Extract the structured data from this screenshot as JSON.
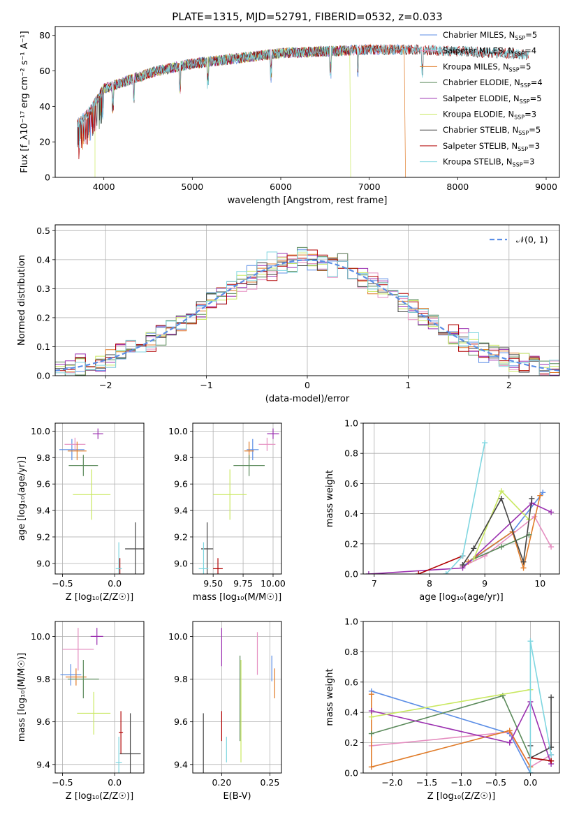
{
  "figure_title": "PLATE=1315, MJD=52791, FIBERID=0532, z=0.033",
  "colors": {
    "chabrier_miles": "#5b8ee6",
    "salpeter_miles": "#e58ec0",
    "kroupa_miles": "#e07b28",
    "chabrier_elodie": "#5a8a5a",
    "salpeter_elodie": "#9b30b0",
    "kroupa_elodie": "#c9e860",
    "chabrier_stelib": "#444444",
    "salpeter_stelib": "#b00000",
    "kroupa_stelib": "#7fd6e0",
    "normal_curve": "#5b8ee6",
    "grid": "#b0b0b0"
  },
  "chart_data": [
    {
      "id": "spectrum",
      "type": "line",
      "xlabel": "wavelength [Angstrom, rest frame]",
      "ylabel": "Flux [f_λ10⁻¹⁷ erg cm⁻² s⁻¹ A⁻¹]",
      "xlim": [
        3450,
        9150
      ],
      "ylim": [
        0,
        85
      ],
      "xticks": [
        4000,
        5000,
        6000,
        7000,
        8000,
        9000
      ],
      "yticks": [
        0,
        20,
        40,
        60,
        80
      ],
      "grid": false,
      "legend_loc": "upper right",
      "spectrum_trend": {
        "x": [
          3700,
          3850,
          4000,
          4300,
          4600,
          5000,
          5500,
          6000,
          6500,
          7000,
          7500,
          8000,
          8500,
          8800
        ],
        "y": [
          30,
          38,
          50,
          55,
          60,
          64,
          67,
          70,
          71,
          72,
          72,
          71,
          70,
          69
        ]
      },
      "series": [
        {
          "name": "Chabrier MILES, N_SSP=5",
          "label_main": "Chabrier MILES, N",
          "label_sub": "SSP",
          "label_tail": "=5",
          "color_key": "chabrier_miles",
          "x_range": [
            3700,
            7400
          ]
        },
        {
          "name": "Salpeter MILES, N_SSP=4",
          "label_main": "Salpeter MILES, N",
          "label_sub": "SSP",
          "label_tail": "=4",
          "color_key": "salpeter_miles",
          "x_range": [
            3700,
            7400
          ]
        },
        {
          "name": "Kroupa MILES, N_SSP=5",
          "label_main": "Kroupa MILES, N",
          "label_sub": "SSP",
          "label_tail": "=5",
          "color_key": "kroupa_miles",
          "x_range": [
            3700,
            7400
          ],
          "drop_at": 7410
        },
        {
          "name": "Chabrier ELODIE, N_SSP=4",
          "label_main": "Chabrier ELODIE, N",
          "label_sub": "SSP",
          "label_tail": "=4",
          "color_key": "chabrier_elodie",
          "x_range": [
            3900,
            6780
          ]
        },
        {
          "name": "Salpeter ELODIE, N_SSP=5",
          "label_main": "Salpeter ELODIE, N",
          "label_sub": "SSP",
          "label_tail": "=5",
          "color_key": "salpeter_elodie",
          "x_range": [
            3900,
            6780
          ]
        },
        {
          "name": "Kroupa ELODIE, N_SSP=3",
          "label_main": "Kroupa ELODIE, N",
          "label_sub": "SSP",
          "label_tail": "=3",
          "color_key": "kroupa_elodie",
          "x_range": [
            3900,
            6780
          ],
          "drop_at": 3900,
          "drop_at2": 6790
        },
        {
          "name": "Chabrier STELIB, N_SSP=5",
          "label_main": "Chabrier STELIB, N",
          "label_sub": "SSP",
          "label_tail": "=5",
          "color_key": "chabrier_stelib",
          "x_range": [
            3700,
            8800
          ]
        },
        {
          "name": "Salpeter STELIB, N_SSP=3",
          "label_main": "Salpeter STELIB, N",
          "label_sub": "SSP",
          "label_tail": "=3",
          "color_key": "salpeter_stelib",
          "x_range": [
            3700,
            8800
          ]
        },
        {
          "name": "Kroupa STELIB, N_SSP=3",
          "label_main": "Kroupa STELIB, N",
          "label_sub": "SSP",
          "label_tail": "=3",
          "color_key": "kroupa_stelib",
          "x_range": [
            3700,
            8800
          ]
        }
      ]
    },
    {
      "id": "residuals",
      "type": "line",
      "xlabel": "(data-model)/error",
      "ylabel": "Normed distribution",
      "xlim": [
        -2.5,
        2.5
      ],
      "ylim": [
        0,
        0.52
      ],
      "xticks": [
        -2,
        -1,
        0,
        1,
        2
      ],
      "xtick_labels": [
        "−2",
        "−1",
        "0",
        "1",
        "2"
      ],
      "yticks": [
        0,
        0.1,
        0.2,
        0.3,
        0.4,
        0.5
      ],
      "ytick_labels": [
        "0.0",
        "0.1",
        "0.2",
        "0.3",
        "0.4",
        "0.5"
      ],
      "grid": true,
      "legend_loc": "upper right",
      "normal_label": "𝒩(0, 1)",
      "bin_width": 0.1,
      "series_color_keys": [
        "chabrier_miles",
        "salpeter_miles",
        "kroupa_miles",
        "chabrier_elodie",
        "salpeter_elodie",
        "kroupa_elodie",
        "chabrier_stelib",
        "salpeter_stelib",
        "kroupa_stelib"
      ]
    },
    {
      "id": "age_vs_metallicity",
      "type": "errorbar",
      "xlabel": "Z [log₁₀(Z/Z☉)]",
      "ylabel": "age  [log₁₀(age/yr)]",
      "xlim": [
        -0.57,
        0.28
      ],
      "ylim": [
        8.92,
        10.06
      ],
      "xticks": [
        -0.5,
        0.0
      ],
      "xtick_labels": [
        "−0.5",
        "0.0"
      ],
      "yticks": [
        9.0,
        9.2,
        9.4,
        9.6,
        9.8,
        10.0
      ],
      "ytick_labels": [
        "9.0",
        "9.2",
        "9.4",
        "9.6",
        "9.8",
        "10.0"
      ],
      "grid": true,
      "points": [
        {
          "color_key": "chabrier_miles",
          "x": -0.41,
          "xerr": 0.12,
          "y": 9.86,
          "yerr": 0.08
        },
        {
          "color_key": "salpeter_miles",
          "x": -0.38,
          "xerr": 0.1,
          "y": 9.9,
          "yerr": 0.05
        },
        {
          "color_key": "kroupa_miles",
          "x": -0.36,
          "xerr": 0.09,
          "y": 9.85,
          "yerr": 0.07
        },
        {
          "color_key": "chabrier_elodie",
          "x": -0.3,
          "xerr": 0.14,
          "y": 9.74,
          "yerr": 0.08
        },
        {
          "color_key": "salpeter_elodie",
          "x": -0.16,
          "xerr": 0.05,
          "y": 9.98,
          "yerr": 0.04
        },
        {
          "color_key": "kroupa_elodie",
          "x": -0.22,
          "xerr": 0.18,
          "y": 9.52,
          "yerr": 0.19
        },
        {
          "color_key": "chabrier_stelib",
          "x": 0.2,
          "xerr": 0.1,
          "y": 9.11,
          "yerr": 0.2
        },
        {
          "color_key": "salpeter_stelib",
          "x": 0.05,
          "xerr": 0.01,
          "y": 8.96,
          "yerr": 0.08
        },
        {
          "color_key": "kroupa_stelib",
          "x": 0.04,
          "xerr": 0.03,
          "y": 8.96,
          "yerr": 0.2
        }
      ]
    },
    {
      "id": "age_vs_mass",
      "type": "errorbar",
      "xlabel": "mass [log₁₀(M/M☉)]",
      "ylabel": "",
      "xlim": [
        9.33,
        10.07
      ],
      "ylim": [
        8.92,
        10.06
      ],
      "xticks": [
        9.5,
        9.75,
        10.0
      ],
      "xtick_labels": [
        "9.50",
        "9.75",
        "10.00"
      ],
      "yticks": [
        9.0,
        9.2,
        9.4,
        9.6,
        9.8,
        10.0
      ],
      "ytick_labels": [
        "9.0",
        "9.2",
        "9.4",
        "9.6",
        "9.8",
        "10.0"
      ],
      "grid": true,
      "points": [
        {
          "color_key": "chabrier_miles",
          "x": 9.83,
          "xerr": 0.05,
          "y": 9.86,
          "yerr": 0.08
        },
        {
          "color_key": "salpeter_miles",
          "x": 9.95,
          "xerr": 0.07,
          "y": 9.9,
          "yerr": 0.05
        },
        {
          "color_key": "kroupa_miles",
          "x": 9.8,
          "xerr": 0.04,
          "y": 9.85,
          "yerr": 0.07
        },
        {
          "color_key": "chabrier_elodie",
          "x": 9.8,
          "xerr": 0.13,
          "y": 9.74,
          "yerr": 0.08
        },
        {
          "color_key": "salpeter_elodie",
          "x": 10.0,
          "xerr": 0.05,
          "y": 9.98,
          "yerr": 0.04
        },
        {
          "color_key": "kroupa_elodie",
          "x": 9.64,
          "xerr": 0.14,
          "y": 9.52,
          "yerr": 0.19
        },
        {
          "color_key": "chabrier_stelib",
          "x": 9.45,
          "xerr": 0.05,
          "y": 9.11,
          "yerr": 0.2
        },
        {
          "color_key": "salpeter_stelib",
          "x": 9.54,
          "xerr": 0.04,
          "y": 8.96,
          "yerr": 0.08
        },
        {
          "color_key": "kroupa_stelib",
          "x": 9.42,
          "xerr": 0.04,
          "y": 8.96,
          "yerr": 0.2
        }
      ]
    },
    {
      "id": "weight_vs_age",
      "type": "line",
      "xlabel": "age  [log₁₀(age/yr)]",
      "ylabel": "mass weight",
      "xlim": [
        6.8,
        10.35
      ],
      "ylim": [
        0,
        1.0
      ],
      "xticks": [
        7,
        8,
        9,
        10
      ],
      "yticks": [
        0,
        0.2,
        0.4,
        0.6,
        0.8,
        1.0
      ],
      "ytick_labels": [
        "0.0",
        "0.2",
        "0.4",
        "0.6",
        "0.8",
        "1.0"
      ],
      "grid": true,
      "series": [
        {
          "color_key": "chabrier_miles",
          "x": [
            8.6,
            9.5,
            10.05
          ],
          "y": [
            0.05,
            0.28,
            0.54
          ]
        },
        {
          "color_key": "salpeter_miles",
          "x": [
            8.6,
            9.0,
            9.9,
            10.2
          ],
          "y": [
            0.05,
            0.12,
            0.38,
            0.18
          ]
        },
        {
          "color_key": "kroupa_miles",
          "x": [
            8.7,
            9.5,
            9.7,
            10.0
          ],
          "y": [
            0.08,
            0.28,
            0.04,
            0.52
          ]
        },
        {
          "color_key": "chabrier_elodie",
          "x": [
            8.8,
            9.3,
            9.8
          ],
          "y": [
            0.1,
            0.18,
            0.26
          ]
        },
        {
          "color_key": "salpeter_elodie",
          "x": [
            6.9,
            8.6,
            9.85,
            10.2
          ],
          "y": [
            0.0,
            0.04,
            0.47,
            0.41
          ]
        },
        {
          "color_key": "kroupa_elodie",
          "x": [
            8.8,
            9.3,
            9.8
          ],
          "y": [
            0.1,
            0.55,
            0.36
          ]
        },
        {
          "color_key": "chabrier_stelib",
          "x": [
            8.6,
            8.8,
            9.3,
            9.7,
            9.85
          ],
          "y": [
            0.06,
            0.17,
            0.5,
            0.08,
            0.5
          ]
        },
        {
          "color_key": "salpeter_stelib",
          "x": [
            7.8,
            8.6
          ],
          "y": [
            0.0,
            0.12
          ]
        },
        {
          "color_key": "kroupa_stelib",
          "x": [
            8.3,
            8.6,
            9.0
          ],
          "y": [
            0.0,
            0.12,
            0.87
          ]
        }
      ]
    },
    {
      "id": "mass_vs_metallicity",
      "type": "errorbar",
      "xlabel": "Z [log₁₀(Z/Z☉)]",
      "ylabel": "mass [log₁₀(M/M☉)]",
      "xlim": [
        -0.57,
        0.28
      ],
      "ylim": [
        9.36,
        10.07
      ],
      "xticks": [
        -0.5,
        0.0
      ],
      "xtick_labels": [
        "−0.5",
        "0.0"
      ],
      "yticks": [
        9.4,
        9.6,
        9.8,
        10.0
      ],
      "ytick_labels": [
        "9.4",
        "9.6",
        "9.8",
        "10.0"
      ],
      "grid": true,
      "points": [
        {
          "color_key": "chabrier_miles",
          "x": -0.42,
          "xerr": 0.1,
          "y": 9.82,
          "yerr": 0.05
        },
        {
          "color_key": "salpeter_miles",
          "x": -0.35,
          "xerr": 0.15,
          "y": 9.94,
          "yerr": 0.1
        },
        {
          "color_key": "kroupa_miles",
          "x": -0.37,
          "xerr": 0.1,
          "y": 9.81,
          "yerr": 0.04
        },
        {
          "color_key": "chabrier_elodie",
          "x": -0.3,
          "xerr": 0.15,
          "y": 9.8,
          "yerr": 0.09
        },
        {
          "color_key": "salpeter_elodie",
          "x": -0.17,
          "xerr": 0.06,
          "y": 10.0,
          "yerr": 0.04
        },
        {
          "color_key": "kroupa_elodie",
          "x": -0.2,
          "xerr": 0.16,
          "y": 9.64,
          "yerr": 0.1
        },
        {
          "color_key": "chabrier_stelib",
          "x": 0.15,
          "xerr": 0.1,
          "y": 9.45,
          "yerr": 0.19
        },
        {
          "color_key": "salpeter_stelib",
          "x": 0.06,
          "xerr": 0.02,
          "y": 9.55,
          "yerr": 0.1
        },
        {
          "color_key": "kroupa_stelib",
          "x": 0.04,
          "xerr": 0.03,
          "y": 9.41,
          "yerr": 0.12
        }
      ]
    },
    {
      "id": "mass_vs_ebv",
      "type": "errorbar",
      "xlabel": "E(B-V)",
      "ylabel": "",
      "xlim": [
        0.17,
        0.262
      ],
      "ylim": [
        9.36,
        10.07
      ],
      "xticks": [
        0.2,
        0.25
      ],
      "xtick_labels": [
        "0.20",
        "0.25"
      ],
      "yticks": [
        9.4,
        9.6,
        9.8,
        10.0
      ],
      "ytick_labels": [
        "9.4",
        "9.6",
        "9.8",
        "10.0"
      ],
      "grid": true,
      "points": [
        {
          "color_key": "chabrier_miles",
          "x": 0.252,
          "xerr": 0,
          "y": 9.85,
          "yerr": 0.06
        },
        {
          "color_key": "salpeter_miles",
          "x": 0.237,
          "xerr": 0,
          "y": 9.92,
          "yerr": 0.1
        },
        {
          "color_key": "kroupa_miles",
          "x": 0.255,
          "xerr": 0,
          "y": 9.78,
          "yerr": 0.07
        },
        {
          "color_key": "chabrier_elodie",
          "x": 0.219,
          "xerr": 0,
          "y": 9.71,
          "yerr": 0.2
        },
        {
          "color_key": "salpeter_elodie",
          "x": 0.2,
          "xerr": 0,
          "y": 9.95,
          "yerr": 0.09
        },
        {
          "color_key": "kroupa_elodie",
          "x": 0.22,
          "xerr": 0,
          "y": 9.65,
          "yerr": 0.24
        },
        {
          "color_key": "chabrier_stelib",
          "x": 0.181,
          "xerr": 0,
          "y": 9.49,
          "yerr": 0.15
        },
        {
          "color_key": "salpeter_stelib",
          "x": 0.2,
          "xerr": 0,
          "y": 9.58,
          "yerr": 0.07
        },
        {
          "color_key": "kroupa_stelib",
          "x": 0.205,
          "xerr": 0,
          "y": 9.47,
          "yerr": 0.06
        }
      ]
    },
    {
      "id": "weight_vs_metallicity",
      "type": "line",
      "xlabel": "Z [log₁₀(Z/Z☉)]",
      "ylabel": "mass weight",
      "xlim": [
        -2.42,
        0.42
      ],
      "ylim": [
        0,
        1.0
      ],
      "xticks": [
        -2.0,
        -1.5,
        -1.0,
        -0.5,
        0.0
      ],
      "xtick_labels": [
        "−2.0",
        "−1.5",
        "−1.0",
        "−0.5",
        "0.0"
      ],
      "yticks": [
        0,
        0.2,
        0.4,
        0.6,
        0.8,
        1.0
      ],
      "ytick_labels": [
        "0.0",
        "0.2",
        "0.4",
        "0.6",
        "0.8",
        "1.0"
      ],
      "grid": true,
      "series": [
        {
          "color_key": "chabrier_miles",
          "x": [
            -2.3,
            -0.3,
            0.0
          ],
          "y": [
            0.54,
            0.26,
            0.0
          ]
        },
        {
          "color_key": "salpeter_miles",
          "x": [
            -2.3,
            -0.3,
            0.0,
            0.3
          ],
          "y": [
            0.18,
            0.27,
            0.04,
            0.12
          ]
        },
        {
          "color_key": "kroupa_miles",
          "x": [
            -2.3,
            -2.3,
            -0.3,
            0.0
          ],
          "y": [
            0.52,
            0.04,
            0.28,
            0.04
          ]
        },
        {
          "color_key": "chabrier_elodie",
          "x": [
            -2.3,
            -0.4,
            0.0,
            0.3
          ],
          "y": [
            0.26,
            0.51,
            0.1,
            0.08
          ]
        },
        {
          "color_key": "salpeter_elodie",
          "x": [
            -2.3,
            -0.3,
            0.0,
            0.3
          ],
          "y": [
            0.41,
            0.2,
            0.47,
            0.06
          ]
        },
        {
          "color_key": "kroupa_elodie",
          "x": [
            -2.3,
            0.0
          ],
          "y": [
            0.37,
            0.55
          ]
        },
        {
          "color_key": "chabrier_stelib",
          "x": [
            0.0,
            0.0,
            0.3,
            0.3
          ],
          "y": [
            0.18,
            0.1,
            0.17,
            0.5
          ]
        },
        {
          "color_key": "salpeter_stelib",
          "x": [
            0.0,
            0.3
          ],
          "y": [
            0.1,
            0.08
          ]
        },
        {
          "color_key": "kroupa_stelib",
          "x": [
            0.0,
            0.0,
            0.3
          ],
          "y": [
            0.0,
            0.87,
            0.12
          ]
        }
      ]
    }
  ]
}
